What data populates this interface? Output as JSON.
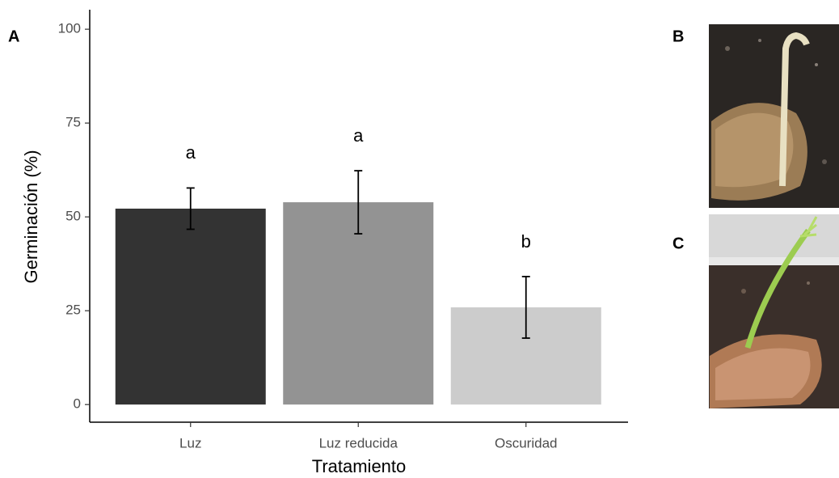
{
  "chart_data": {
    "type": "bar",
    "panel_labels": [
      "A",
      "B",
      "C"
    ],
    "x_label": "Tratamiento",
    "y_label": "Germinación (%)",
    "categories": [
      "Luz",
      "Luz reducida",
      "Oscuridad"
    ],
    "values": [
      52.2,
      53.9,
      25.9
    ],
    "errors": [
      5.5,
      8.4,
      8.2
    ],
    "annotations": [
      "a",
      "a",
      "b"
    ],
    "colors": [
      "#333333",
      "#939393",
      "#cccccc"
    ],
    "ylim": [
      -4.7,
      105.2
    ],
    "yticks": [
      0,
      25,
      50,
      75,
      100
    ]
  }
}
